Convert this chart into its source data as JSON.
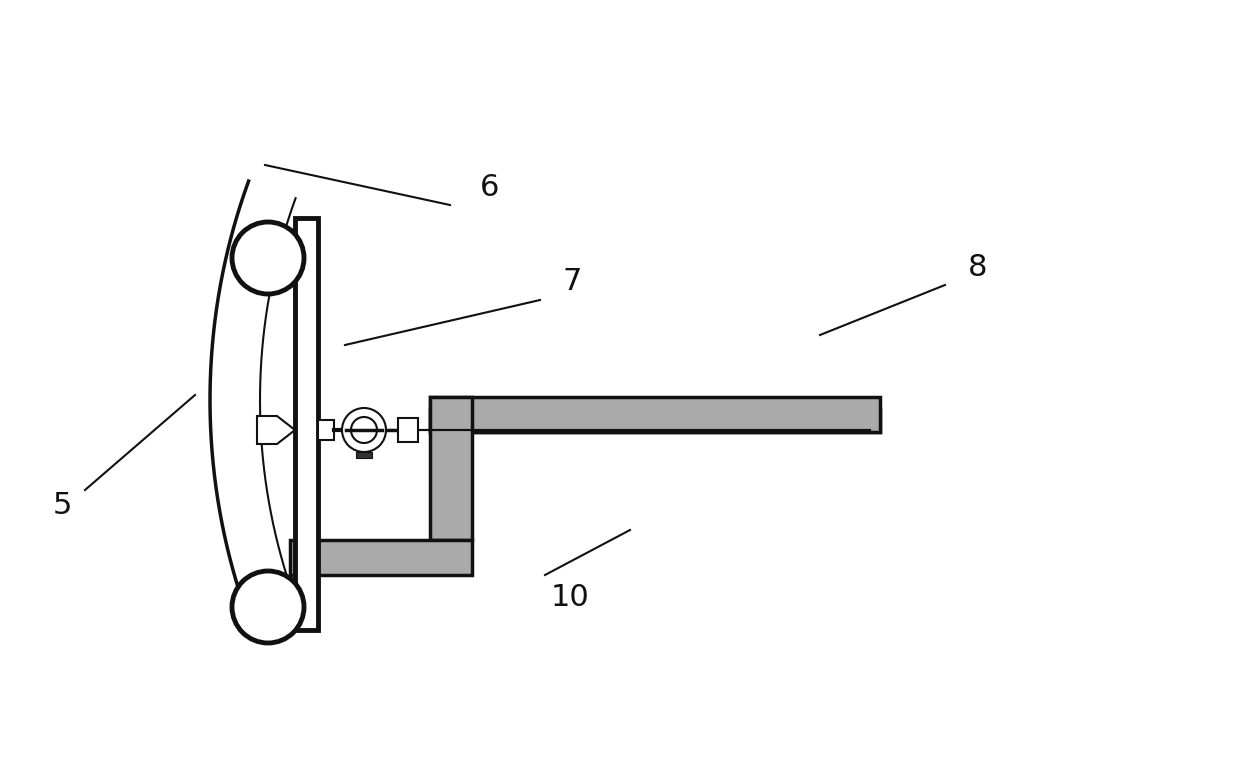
{
  "bg_color": "#ffffff",
  "line_color": "#111111",
  "hatch_color": "#888888",
  "label_fontsize": 22,
  "lw_main": 2.5,
  "lw_thin": 1.5,
  "lw_thick": 3.5
}
